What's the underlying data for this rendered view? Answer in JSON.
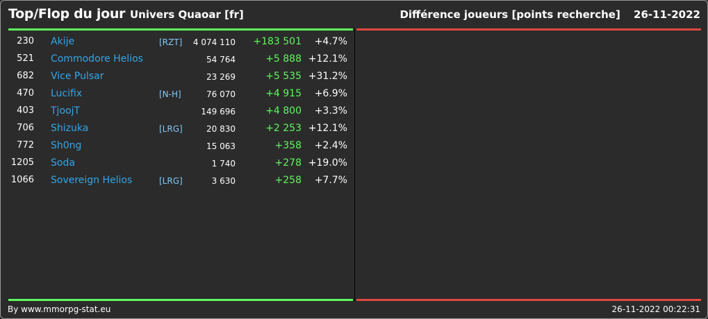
{
  "header": {
    "title": "Top/Flop du jour",
    "universe": "Univers Quaoar [fr]",
    "category": "Différence joueurs [points recherche]",
    "date": "26-11-2022"
  },
  "colors": {
    "background": "#2b2b2b",
    "top_accent": "#5ff85f",
    "flop_accent": "#e0493f",
    "player_link": "#33a6e8",
    "alliance_tag": "#86c9f3",
    "gain": "#5ff85f"
  },
  "top": {
    "rows": [
      {
        "rank": "230",
        "name": "Akije",
        "alliance": "[RZT]",
        "score": "4 074 110",
        "diff": "+183 501",
        "pct": "+4.7%"
      },
      {
        "rank": "521",
        "name": "Commodore Helios",
        "alliance": "",
        "score": "54 764",
        "diff": "+5 888",
        "pct": "+12.1%"
      },
      {
        "rank": "682",
        "name": "Vice Pulsar",
        "alliance": "",
        "score": "23 269",
        "diff": "+5 535",
        "pct": "+31.2%"
      },
      {
        "rank": "470",
        "name": "Lucifix",
        "alliance": "[N-H]",
        "score": "76 070",
        "diff": "+4 915",
        "pct": "+6.9%"
      },
      {
        "rank": "403",
        "name": "TjoojT",
        "alliance": "",
        "score": "149 696",
        "diff": "+4 800",
        "pct": "+3.3%"
      },
      {
        "rank": "706",
        "name": "Shizuka",
        "alliance": "[LRG]",
        "score": "20 830",
        "diff": "+2 253",
        "pct": "+12.1%"
      },
      {
        "rank": "772",
        "name": "Sh0ng",
        "alliance": "",
        "score": "15 063",
        "diff": "+358",
        "pct": "+2.4%"
      },
      {
        "rank": "1205",
        "name": "Soda",
        "alliance": "",
        "score": "1 740",
        "diff": "+278",
        "pct": "+19.0%"
      },
      {
        "rank": "1066",
        "name": "Sovereign Helios",
        "alliance": "[LRG]",
        "score": "3 630",
        "diff": "+258",
        "pct": "+7.7%"
      }
    ]
  },
  "flop": {
    "rows": []
  },
  "footer": {
    "credit": "By www.mmorpg-stat.eu",
    "generated": "26-11-2022 00:22:31"
  }
}
